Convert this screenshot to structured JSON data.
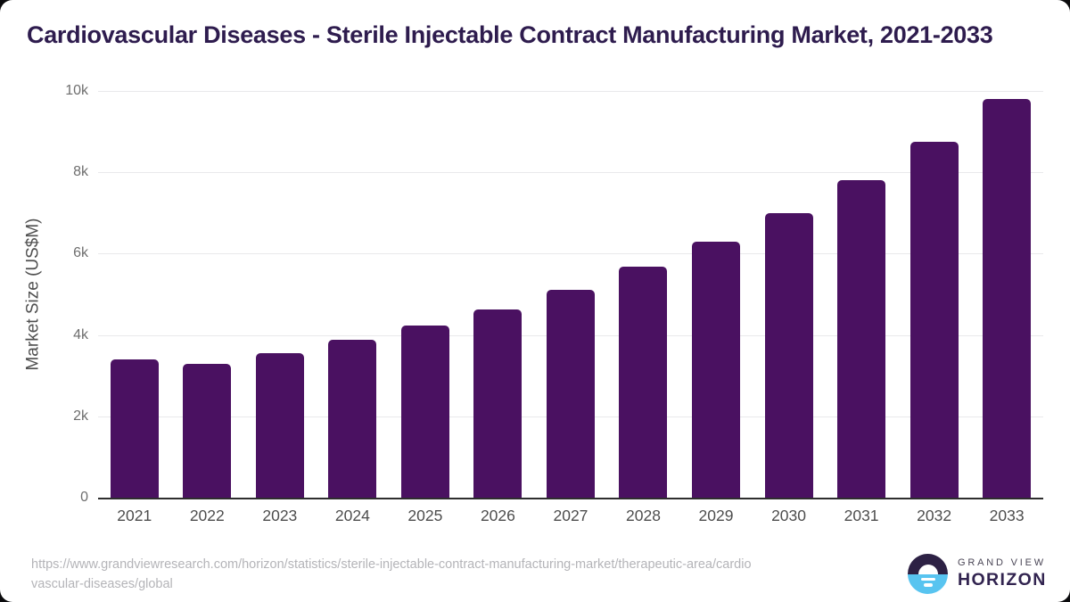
{
  "title": "Cardiovascular Diseases - Sterile Injectable Contract Manufacturing Market, 2021-2033",
  "chart_data": {
    "type": "bar",
    "title": "Cardiovascular Diseases - Sterile Injectable Contract Manufacturing Market, 2021-2033",
    "categories": [
      "2021",
      "2022",
      "2023",
      "2024",
      "2025",
      "2026",
      "2027",
      "2028",
      "2029",
      "2030",
      "2031",
      "2032",
      "2033"
    ],
    "values": [
      3400,
      3280,
      3560,
      3880,
      4240,
      4630,
      5120,
      5670,
      6290,
      6990,
      7800,
      8750,
      9800
    ],
    "xlabel": "",
    "ylabel": "Market Size (US$M)",
    "ylim": [
      0,
      10000
    ],
    "yticks": [
      {
        "value": 0,
        "label": "0"
      },
      {
        "value": 2000,
        "label": "2k"
      },
      {
        "value": 4000,
        "label": "4k"
      },
      {
        "value": 6000,
        "label": "6k"
      },
      {
        "value": 8000,
        "label": "8k"
      },
      {
        "value": 10000,
        "label": "10k"
      }
    ],
    "grid": "horizontal",
    "legend": "none",
    "bar_color": "#4a1161"
  },
  "colors": {
    "title": "#2e1c4e",
    "bar": "#4a1161",
    "axis_line": "#2e2e2e",
    "gridline": "#e9e9eb",
    "tick_text": "#6e6e6e",
    "x_tick_text": "#4d4d4d",
    "url_text": "#b4b4b8",
    "logo_sky": "#2d2144",
    "logo_sea": "#58c4f0"
  },
  "footer": {
    "source_url_line1": "https://www.grandviewresearch.com/horizon/statistics/sterile-injectable-contract-manufacturing-market/therapeutic-area/cardio",
    "source_url_line2": "vascular-diseases/global",
    "logo": {
      "icon": "horizon-sunrise-icon",
      "brand_line1": "GRAND VIEW",
      "brand_line2": "HORIZON"
    }
  }
}
